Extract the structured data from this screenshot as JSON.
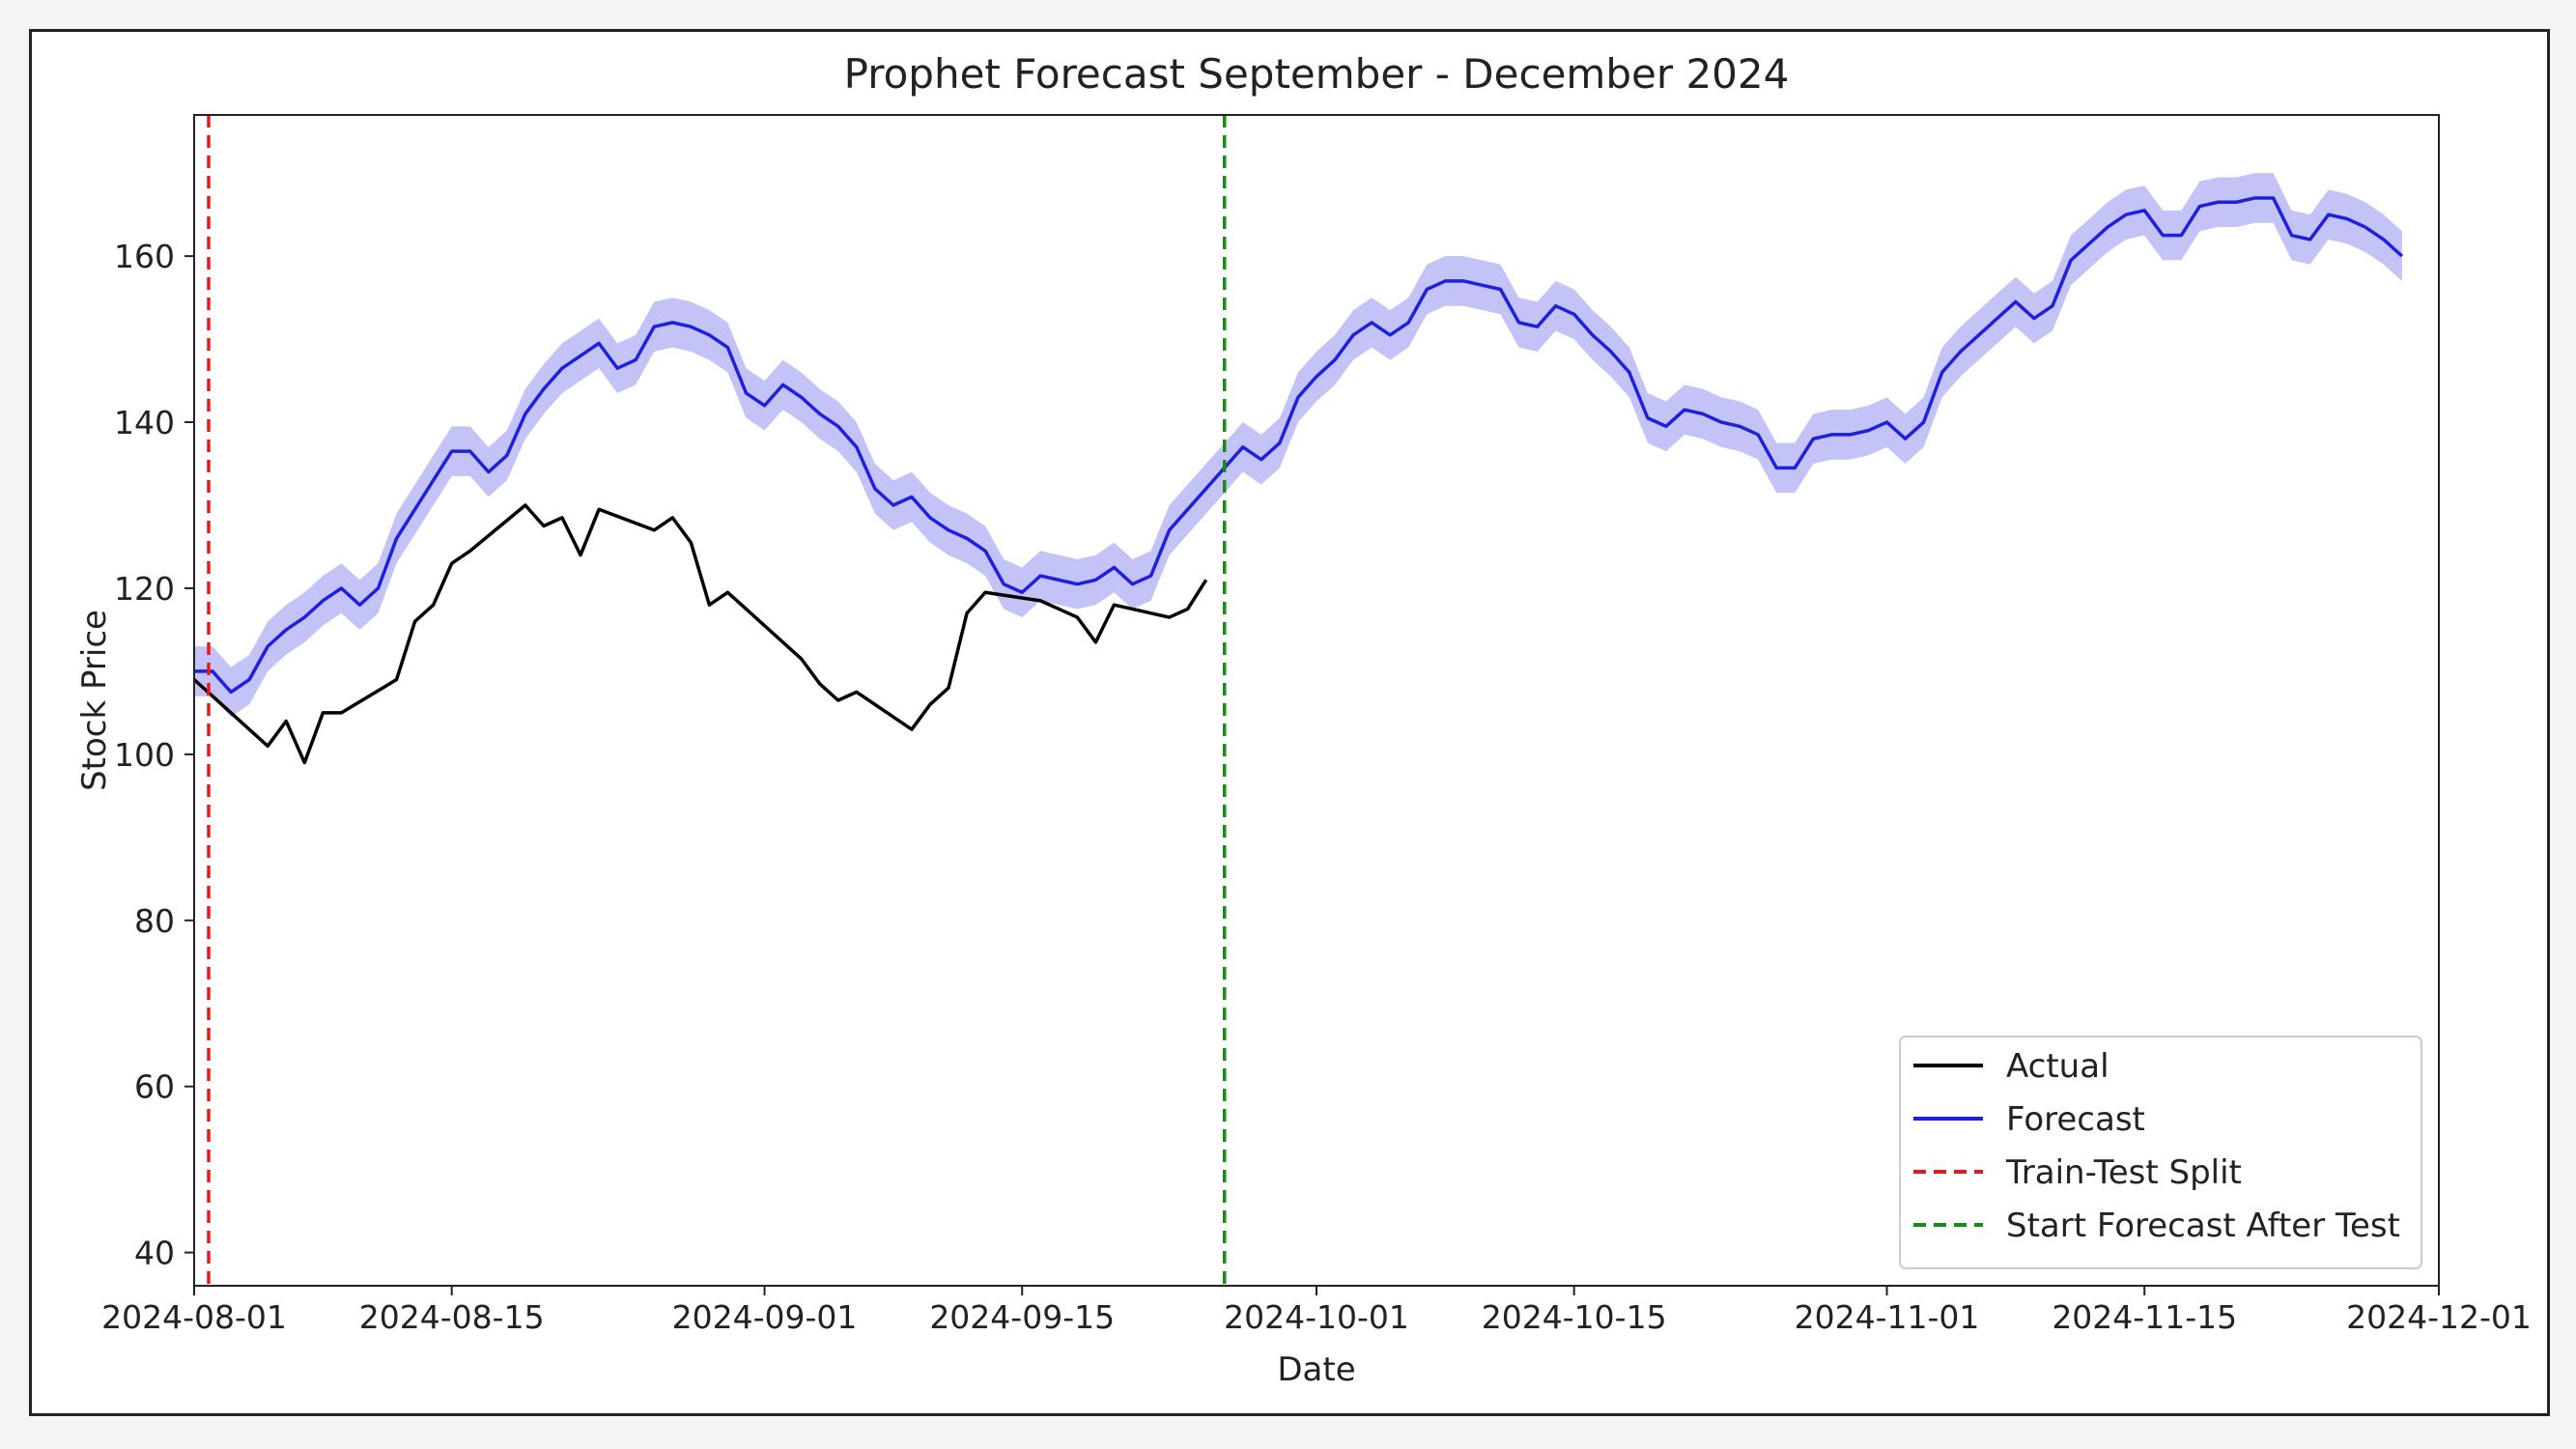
{
  "chart_data": {
    "type": "line",
    "title": "Prophet Forecast September - December 2024",
    "xlabel": "Date",
    "ylabel": "Stock Price",
    "xlim": [
      "2024-08-01",
      "2024-12-01"
    ],
    "ylim": [
      36,
      177
    ],
    "x_ticks": [
      "2024-08-01",
      "2024-08-15",
      "2024-09-01",
      "2024-09-15",
      "2024-10-01",
      "2024-10-15",
      "2024-11-01",
      "2024-11-15",
      "2024-12-01"
    ],
    "y_ticks": [
      40,
      60,
      80,
      100,
      120,
      140,
      160
    ],
    "grid": false,
    "legend_position": "bottom-right",
    "series": [
      {
        "name": "Actual",
        "color": "#000000",
        "style": "solid",
        "points": [
          [
            "2024-08-01",
            109
          ],
          [
            "2024-08-02",
            107
          ],
          [
            "2024-08-05",
            101
          ],
          [
            "2024-08-06",
            104
          ],
          [
            "2024-08-07",
            99
          ],
          [
            "2024-08-08",
            105
          ],
          [
            "2024-08-09",
            105
          ],
          [
            "2024-08-12",
            109
          ],
          [
            "2024-08-13",
            116
          ],
          [
            "2024-08-14",
            118
          ],
          [
            "2024-08-15",
            123
          ],
          [
            "2024-08-16",
            124.5
          ],
          [
            "2024-08-19",
            130
          ],
          [
            "2024-08-20",
            127.5
          ],
          [
            "2024-08-21",
            128.5
          ],
          [
            "2024-08-22",
            124
          ],
          [
            "2024-08-23",
            129.5
          ],
          [
            "2024-08-26",
            127
          ],
          [
            "2024-08-27",
            128.5
          ],
          [
            "2024-08-28",
            125.5
          ],
          [
            "2024-08-29",
            118
          ],
          [
            "2024-08-30",
            119.5
          ],
          [
            "2024-09-03",
            111.5
          ],
          [
            "2024-09-04",
            108.5
          ],
          [
            "2024-09-05",
            106.5
          ],
          [
            "2024-09-06",
            107.5
          ],
          [
            "2024-09-09",
            103
          ],
          [
            "2024-09-10",
            106
          ],
          [
            "2024-09-11",
            108
          ],
          [
            "2024-09-12",
            117
          ],
          [
            "2024-09-13",
            119.5
          ],
          [
            "2024-09-16",
            118.5
          ],
          [
            "2024-09-17",
            117.5
          ],
          [
            "2024-09-18",
            116.5
          ],
          [
            "2024-09-19",
            113.5
          ],
          [
            "2024-09-20",
            118
          ],
          [
            "2024-09-23",
            116.5
          ],
          [
            "2024-09-24",
            117.5
          ],
          [
            "2024-09-25",
            121
          ]
        ]
      },
      {
        "name": "Forecast",
        "color": "#1f1fe0",
        "style": "solid",
        "band_color": "#b8b8f7",
        "band_halfwidth": 3,
        "points": [
          [
            "2024-08-01",
            110
          ],
          [
            "2024-08-02",
            110
          ],
          [
            "2024-08-03",
            107.5
          ],
          [
            "2024-08-04",
            109
          ],
          [
            "2024-08-05",
            113
          ],
          [
            "2024-08-06",
            115
          ],
          [
            "2024-08-07",
            116.5
          ],
          [
            "2024-08-08",
            118.5
          ],
          [
            "2024-08-09",
            120
          ],
          [
            "2024-08-10",
            118
          ],
          [
            "2024-08-11",
            120
          ],
          [
            "2024-08-12",
            126
          ],
          [
            "2024-08-13",
            129.5
          ],
          [
            "2024-08-14",
            133
          ],
          [
            "2024-08-15",
            136.5
          ],
          [
            "2024-08-16",
            136.5
          ],
          [
            "2024-08-17",
            134
          ],
          [
            "2024-08-18",
            136
          ],
          [
            "2024-08-19",
            141
          ],
          [
            "2024-08-20",
            144
          ],
          [
            "2024-08-21",
            146.5
          ],
          [
            "2024-08-22",
            148
          ],
          [
            "2024-08-23",
            149.5
          ],
          [
            "2024-08-24",
            146.5
          ],
          [
            "2024-08-25",
            147.5
          ],
          [
            "2024-08-26",
            151.5
          ],
          [
            "2024-08-27",
            152
          ],
          [
            "2024-08-28",
            151.5
          ],
          [
            "2024-08-29",
            150.5
          ],
          [
            "2024-08-30",
            149
          ],
          [
            "2024-08-31",
            143.5
          ],
          [
            "2024-09-01",
            142
          ],
          [
            "2024-09-02",
            144.5
          ],
          [
            "2024-09-03",
            143
          ],
          [
            "2024-09-04",
            141
          ],
          [
            "2024-09-05",
            139.5
          ],
          [
            "2024-09-06",
            137
          ],
          [
            "2024-09-07",
            132
          ],
          [
            "2024-09-08",
            130
          ],
          [
            "2024-09-09",
            131
          ],
          [
            "2024-09-10",
            128.5
          ],
          [
            "2024-09-11",
            127
          ],
          [
            "2024-09-12",
            126
          ],
          [
            "2024-09-13",
            124.5
          ],
          [
            "2024-09-14",
            120.5
          ],
          [
            "2024-09-15",
            119.5
          ],
          [
            "2024-09-16",
            121.5
          ],
          [
            "2024-09-17",
            121
          ],
          [
            "2024-09-18",
            120.5
          ],
          [
            "2024-09-19",
            121
          ],
          [
            "2024-09-20",
            122.5
          ],
          [
            "2024-09-21",
            120.5
          ],
          [
            "2024-09-22",
            121.5
          ],
          [
            "2024-09-23",
            127
          ],
          [
            "2024-09-24",
            129.5
          ],
          [
            "2024-09-25",
            132
          ],
          [
            "2024-09-26",
            134.5
          ],
          [
            "2024-09-27",
            137
          ],
          [
            "2024-09-28",
            135.5
          ],
          [
            "2024-09-29",
            137.5
          ],
          [
            "2024-09-30",
            143
          ],
          [
            "2024-10-01",
            145.5
          ],
          [
            "2024-10-02",
            147.5
          ],
          [
            "2024-10-03",
            150.5
          ],
          [
            "2024-10-04",
            152
          ],
          [
            "2024-10-05",
            150.5
          ],
          [
            "2024-10-06",
            152
          ],
          [
            "2024-10-07",
            156
          ],
          [
            "2024-10-08",
            157
          ],
          [
            "2024-10-09",
            157
          ],
          [
            "2024-10-10",
            156.5
          ],
          [
            "2024-10-11",
            156
          ],
          [
            "2024-10-12",
            152
          ],
          [
            "2024-10-13",
            151.5
          ],
          [
            "2024-10-14",
            154
          ],
          [
            "2024-10-15",
            153
          ],
          [
            "2024-10-16",
            150.5
          ],
          [
            "2024-10-17",
            148.5
          ],
          [
            "2024-10-18",
            146
          ],
          [
            "2024-10-19",
            140.5
          ],
          [
            "2024-10-20",
            139.5
          ],
          [
            "2024-10-21",
            141.5
          ],
          [
            "2024-10-22",
            141
          ],
          [
            "2024-10-23",
            140
          ],
          [
            "2024-10-24",
            139.5
          ],
          [
            "2024-10-25",
            138.5
          ],
          [
            "2024-10-26",
            134.5
          ],
          [
            "2024-10-27",
            134.5
          ],
          [
            "2024-10-28",
            138
          ],
          [
            "2024-10-29",
            138.5
          ],
          [
            "2024-10-30",
            138.5
          ],
          [
            "2024-10-31",
            139
          ],
          [
            "2024-11-01",
            140
          ],
          [
            "2024-11-02",
            138
          ],
          [
            "2024-11-03",
            140
          ],
          [
            "2024-11-04",
            146
          ],
          [
            "2024-11-05",
            148.5
          ],
          [
            "2024-11-06",
            150.5
          ],
          [
            "2024-11-07",
            152.5
          ],
          [
            "2024-11-08",
            154.5
          ],
          [
            "2024-11-09",
            152.5
          ],
          [
            "2024-11-10",
            154
          ],
          [
            "2024-11-11",
            159.5
          ],
          [
            "2024-11-12",
            161.5
          ],
          [
            "2024-11-13",
            163.5
          ],
          [
            "2024-11-14",
            165
          ],
          [
            "2024-11-15",
            165.5
          ],
          [
            "2024-11-16",
            162.5
          ],
          [
            "2024-11-17",
            162.5
          ],
          [
            "2024-11-18",
            166
          ],
          [
            "2024-11-19",
            166.5
          ],
          [
            "2024-11-20",
            166.5
          ],
          [
            "2024-11-21",
            167
          ],
          [
            "2024-11-22",
            167
          ],
          [
            "2024-11-23",
            162.5
          ],
          [
            "2024-11-24",
            162
          ],
          [
            "2024-11-25",
            165
          ],
          [
            "2024-11-26",
            164.5
          ],
          [
            "2024-11-27",
            163.5
          ],
          [
            "2024-11-28",
            162
          ],
          [
            "2024-11-29",
            160
          ]
        ]
      }
    ],
    "vlines": [
      {
        "name": "Train-Test Split",
        "x": "2024-08-01",
        "color": "#e41a1c",
        "style": "dashed"
      },
      {
        "name": "Start Forecast After Test",
        "x": "2024-09-26",
        "color": "#1a8a1a",
        "style": "dashed"
      }
    ]
  }
}
